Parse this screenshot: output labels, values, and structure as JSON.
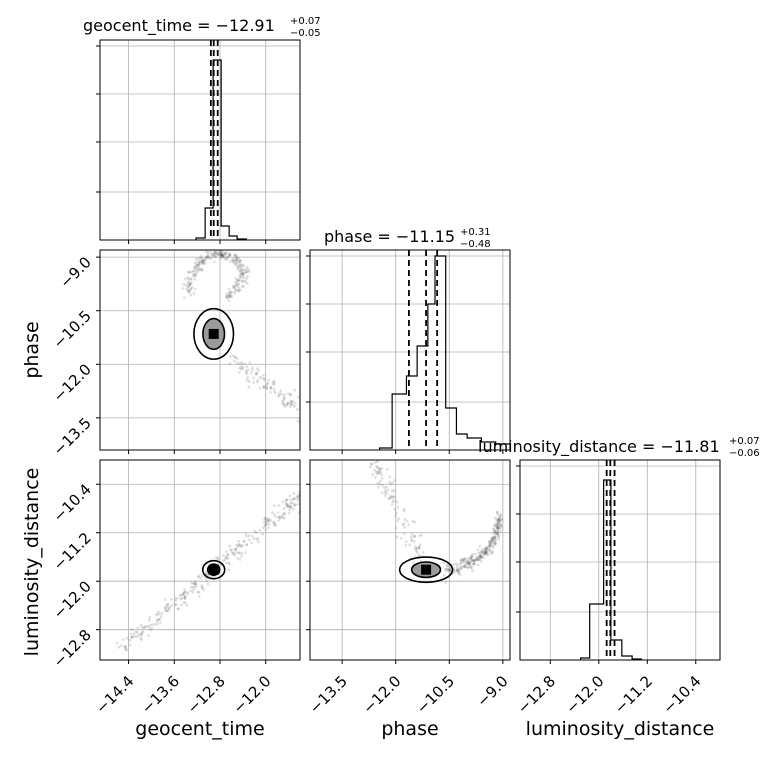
{
  "chart_data": {
    "type": "corner",
    "parameters": [
      {
        "key": "geocent_time",
        "label": "geocent_time",
        "title_main": "geocent_time = −12.91",
        "title_plus": "+0.07",
        "title_minus": "−0.05",
        "median": -12.91,
        "quantiles": [
          -12.96,
          -12.91,
          -12.84
        ],
        "range": [
          -14.9,
          -11.4
        ],
        "ticks": [
          -14.4,
          -13.6,
          -12.8,
          -12.0
        ],
        "tick_labels": [
          "−14.4",
          "−13.6",
          "−12.8",
          "−12.0"
        ],
        "hist_edges": [
          -13.22,
          -13.06,
          -12.92,
          -12.78,
          -12.64,
          -12.5,
          -12.34
        ],
        "hist_counts": [
          0.01,
          0.16,
          0.9,
          0.07,
          0.02,
          0.005
        ]
      },
      {
        "key": "phase",
        "label": "phase",
        "title_main": "phase = −11.15",
        "title_plus": "+0.31",
        "title_minus": "−0.48",
        "median": -11.15,
        "quantiles": [
          -11.63,
          -11.15,
          -10.84
        ],
        "range": [
          -14.4,
          -8.8
        ],
        "ticks": [
          -13.5,
          -12.0,
          -10.5,
          -9.0
        ],
        "tick_labels": [
          "−13.5",
          "−12.0",
          "−10.5",
          "−9.0"
        ],
        "hist_edges": [
          -12.45,
          -12.1,
          -11.7,
          -11.4,
          -11.1,
          -10.9,
          -10.6,
          -10.3,
          -10.0,
          -9.6,
          -9.2,
          -8.8
        ],
        "hist_counts": [
          0.01,
          0.28,
          0.37,
          0.52,
          0.73,
          0.97,
          0.21,
          0.08,
          0.06,
          0.04,
          0.03
        ]
      },
      {
        "key": "luminosity_distance",
        "label": "luminosity_distance",
        "title_main": "luminosity_distance = −11.81",
        "title_plus": "+0.07",
        "title_minus": "−0.06",
        "median": -11.81,
        "quantiles": [
          -11.87,
          -11.81,
          -11.74
        ],
        "range": [
          -13.3,
          -10.0
        ],
        "ticks": [
          -12.8,
          -12.0,
          -11.2,
          -10.4
        ],
        "tick_labels": [
          "−12.8",
          "−12.0",
          "−11.2",
          "−10.4"
        ],
        "hist_edges": [
          -12.3,
          -12.15,
          -11.92,
          -11.8,
          -11.62,
          -11.45,
          -11.3
        ],
        "hist_counts": [
          0.01,
          0.28,
          0.9,
          0.1,
          0.02,
          0.005
        ]
      }
    ]
  }
}
